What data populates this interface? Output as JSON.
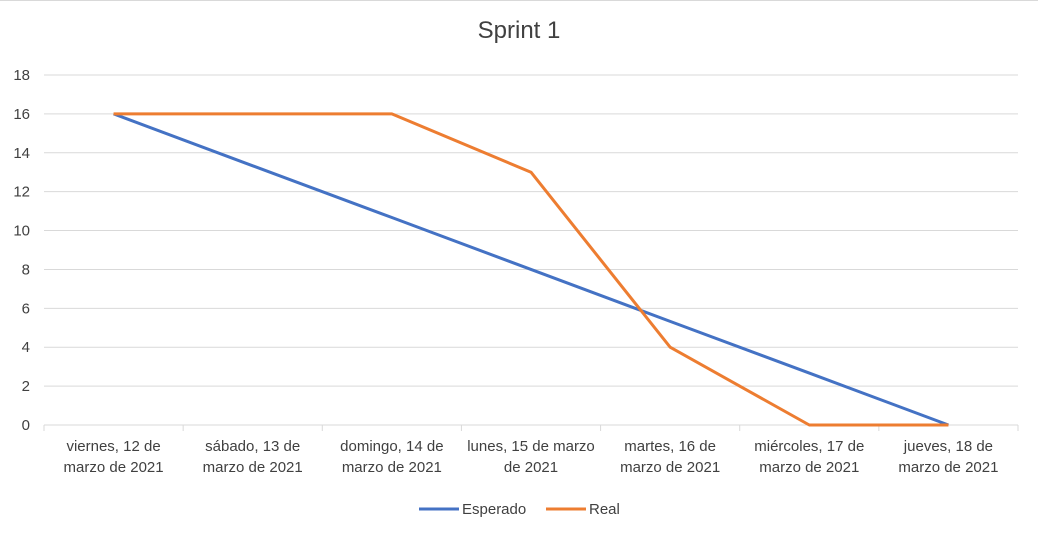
{
  "chart_data": {
    "type": "line",
    "title": "Sprint 1",
    "xlabel": "",
    "ylabel": "",
    "ylim": [
      0,
      18
    ],
    "yticks": [
      "0",
      "2",
      "4",
      "6",
      "8",
      "10",
      "12",
      "14",
      "16",
      "18"
    ],
    "categories": [
      [
        "viernes, 12 de",
        "marzo de 2021"
      ],
      [
        "sábado, 13 de",
        "marzo de 2021"
      ],
      [
        "domingo, 14 de",
        "marzo de 2021"
      ],
      [
        "lunes, 15 de marzo",
        "de 2021"
      ],
      [
        "martes, 16 de",
        "marzo de 2021"
      ],
      [
        "miércoles, 17 de",
        "marzo de 2021"
      ],
      [
        "jueves, 18 de",
        "marzo de 2021"
      ]
    ],
    "series": [
      {
        "name": "Esperado",
        "color": "#4472c4",
        "values": [
          16,
          13.33,
          10.67,
          8,
          5.33,
          2.67,
          0
        ]
      },
      {
        "name": "Real",
        "color": "#ed7d31",
        "values": [
          16,
          16,
          16,
          13,
          4,
          0,
          0
        ]
      }
    ],
    "grid": true,
    "legend": "bottom"
  }
}
